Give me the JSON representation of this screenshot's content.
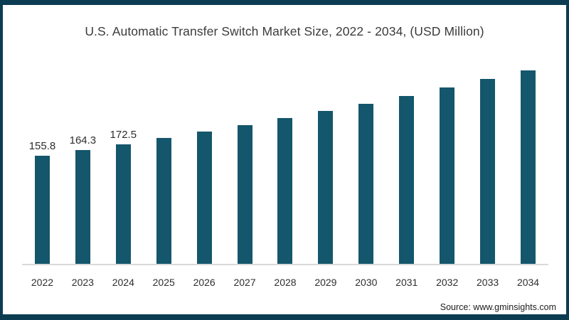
{
  "title": "U.S. Automatic Transfer Switch Market Size, 2022 - 2034,  (USD Million)",
  "source_label": "Source: www.gminsights.com",
  "colors": {
    "bar": "#14566b",
    "frame_border": "#0c3c52",
    "axis_line": "#d9d9d9",
    "title_text": "#3b3b3b",
    "label_text": "#2e2e2e"
  },
  "chart_data": {
    "type": "bar",
    "title": "U.S. Automatic Transfer Switch Market Size, 2022 - 2034,  (USD Million)",
    "categories": [
      "2022",
      "2023",
      "2024",
      "2025",
      "2026",
      "2027",
      "2028",
      "2029",
      "2030",
      "2031",
      "2032",
      "2033",
      "2034"
    ],
    "values": [
      155.8,
      164.3,
      172.5,
      181.5,
      190.5,
      200.0,
      210.0,
      220.0,
      230.5,
      242.0,
      254.0,
      266.0,
      278.5
    ],
    "data_labels": [
      "155.8",
      "164.3",
      "172.5",
      "",
      "",
      "",
      "",
      "",
      "",
      "",
      "",
      "",
      ""
    ],
    "xlabel": "",
    "ylabel": "",
    "ylim": [
      0,
      285
    ],
    "grid": false,
    "legend": false,
    "bar_color": "#14566b"
  }
}
